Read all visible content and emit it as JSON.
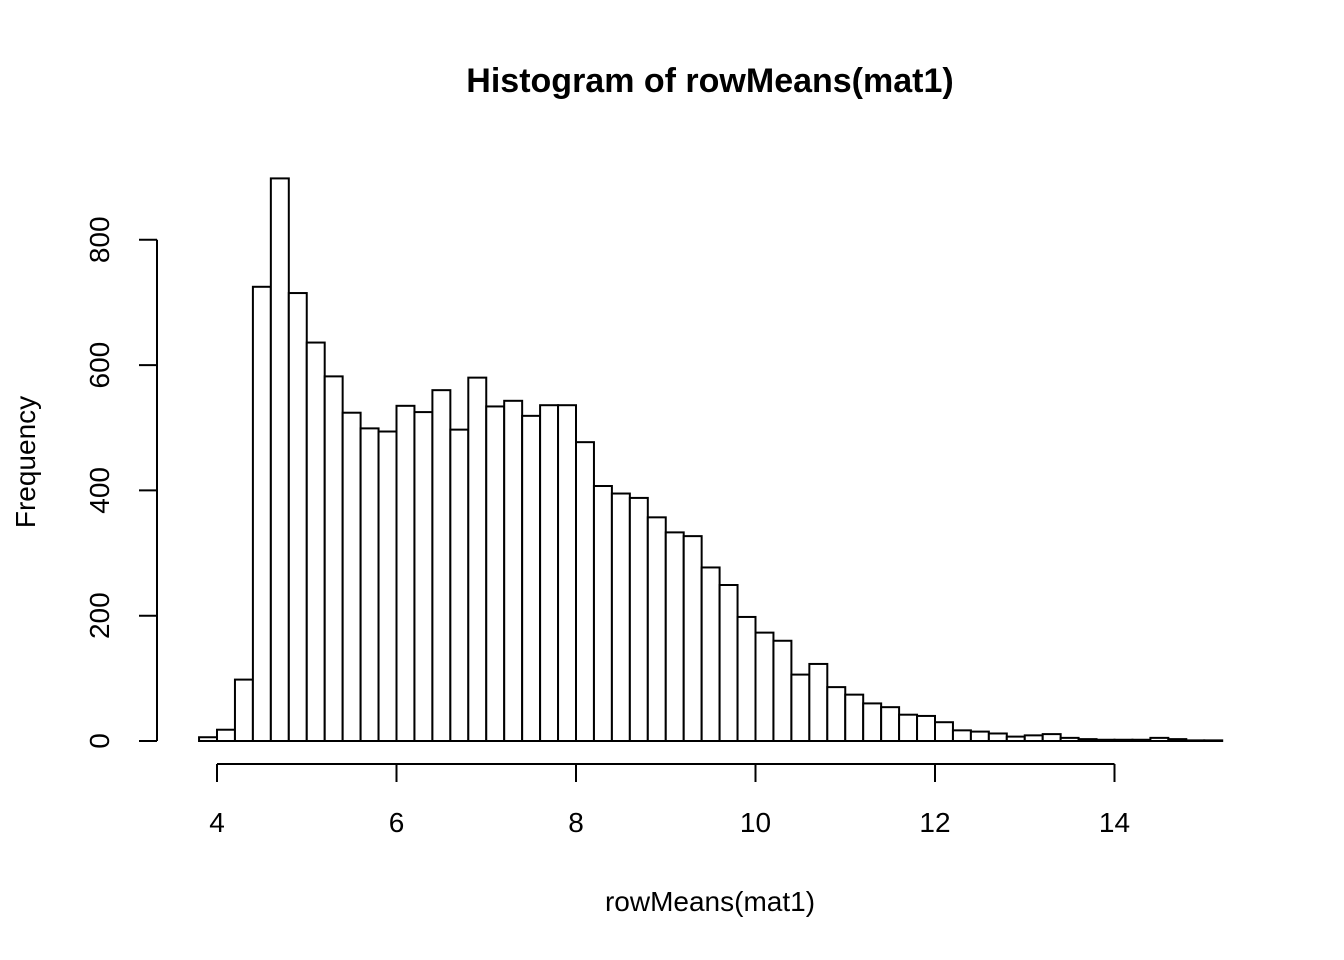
{
  "chart_data": {
    "type": "bar",
    "title": "Histogram of rowMeans(mat1)",
    "xlabel": "rowMeans(mat1)",
    "ylabel": "Frequency",
    "x_ticks": [
      "4",
      "6",
      "8",
      "10",
      "12",
      "14"
    ],
    "y_ticks": [
      "0",
      "200",
      "400",
      "600",
      "800"
    ],
    "xlim": [
      3.8,
      15.2
    ],
    "ylim": [
      0,
      900
    ],
    "bin_width": 0.2,
    "bins": {
      "x_start": [
        3.8,
        4.0,
        4.2,
        4.4,
        4.6,
        4.8,
        5.0,
        5.2,
        5.4,
        5.6,
        5.8,
        6.0,
        6.2,
        6.4,
        6.6,
        6.8,
        7.0,
        7.2,
        7.4,
        7.6,
        7.8,
        8.0,
        8.2,
        8.4,
        8.6,
        8.8,
        9.0,
        9.2,
        9.4,
        9.6,
        9.8,
        10.0,
        10.2,
        10.4,
        10.6,
        10.8,
        11.0,
        11.2,
        11.4,
        11.6,
        11.8,
        12.0,
        12.2,
        12.4,
        12.6,
        12.8,
        13.0,
        13.2,
        13.4,
        13.6,
        13.8,
        14.0,
        14.2,
        14.4,
        14.6,
        14.8,
        15.0
      ],
      "values": [
        6,
        18,
        98,
        725,
        898,
        715,
        636,
        582,
        524,
        499,
        494,
        535,
        525,
        560,
        497,
        580,
        534,
        543,
        519,
        536,
        536,
        477,
        407,
        395,
        388,
        357,
        333,
        327,
        277,
        249,
        198,
        173,
        160,
        106,
        123,
        86,
        74,
        60,
        54,
        42,
        40,
        30,
        17,
        15,
        12,
        7,
        9,
        11,
        5,
        3,
        2,
        2,
        2,
        5,
        3,
        1,
        1
      ]
    },
    "grid": false,
    "legend": "none"
  }
}
